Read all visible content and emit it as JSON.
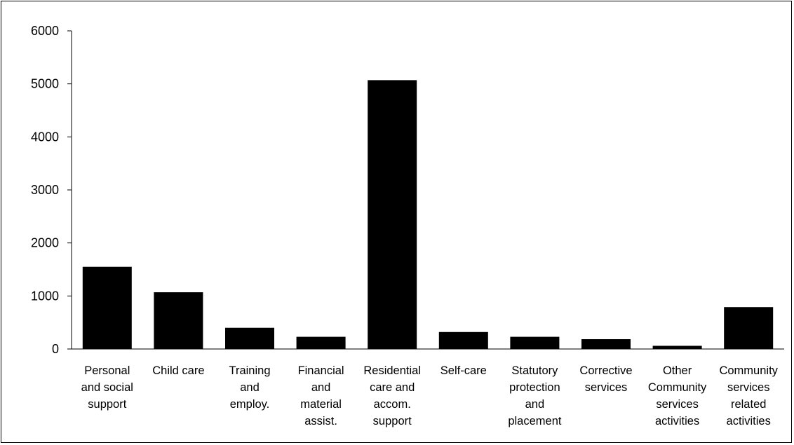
{
  "chart_data": {
    "type": "bar",
    "categories": [
      [
        "Personal",
        "and social",
        "support"
      ],
      [
        "Child care"
      ],
      [
        "Training",
        "and",
        "employ."
      ],
      [
        "Financial",
        "and",
        "material",
        "assist."
      ],
      [
        "Residential",
        "care and",
        "accom.",
        "support"
      ],
      [
        "Self-care"
      ],
      [
        "Statutory",
        "protection",
        "and",
        "placement"
      ],
      [
        "Corrective",
        "services"
      ],
      [
        "Other",
        "Community",
        "services",
        "activities"
      ],
      [
        "Community",
        "services",
        "related",
        "activities"
      ]
    ],
    "values": [
      1550,
      1070,
      400,
      230,
      5070,
      320,
      230,
      185,
      60,
      790
    ],
    "ylim": [
      0,
      6000
    ],
    "yticks": [
      0,
      1000,
      2000,
      3000,
      4000,
      5000,
      6000
    ],
    "bar_color": "#000000",
    "grid": false,
    "title": "",
    "xlabel": "",
    "ylabel": ""
  }
}
